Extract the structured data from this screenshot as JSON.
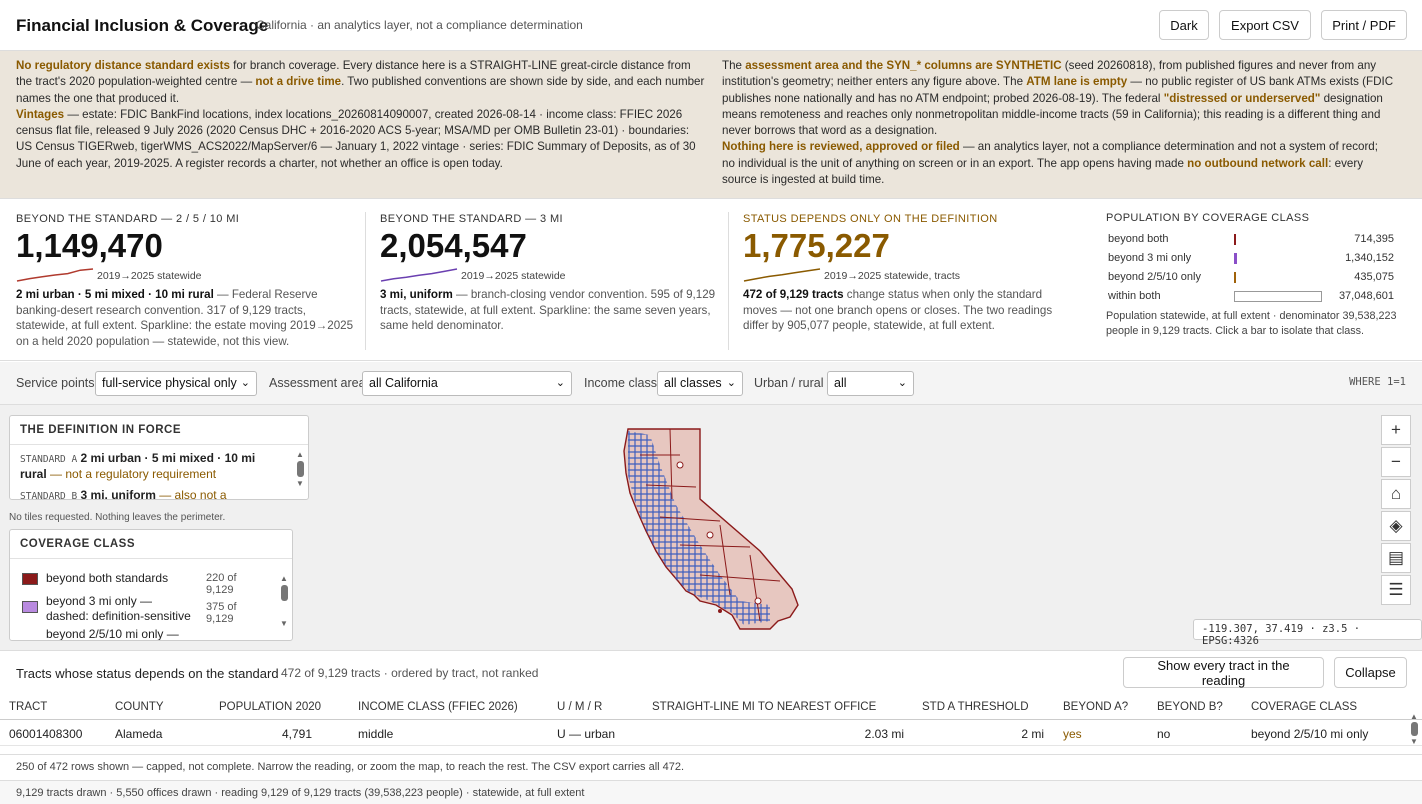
{
  "header": {
    "title": "Financial Inclusion & Coverage",
    "subtitle": "California · an analytics layer, not a compliance determination",
    "buttons": {
      "dark": "Dark",
      "export": "Export CSV",
      "print": "Print / PDF"
    }
  },
  "notice": {
    "left": {
      "p1_hl": "No regulatory distance standard exists",
      "p1_a": " for branch coverage. Every distance here is a STRAIGHT-LINE great-circle distance from the tract's 2020 population-weighted centre — ",
      "p1_hl2": "not a drive time",
      "p1_b": ". Two published conventions are shown side by side, and each number names the one that produced it.",
      "p2_hl": "Vintages",
      "p2_a": " — estate: FDIC BankFind locations, index locations_20260814090007, created 2026-08-14 · income class: FFIEC 2026 census flat file, released 9 July 2026 (2020 Census DHC + 2016-2020 ACS 5-year; MSA/MD per OMB Bulletin 23-01) · boundaries: US Census TIGERweb, tigerWMS_ACS2022/MapServer/6 — January 1, 2022 vintage · series: FDIC Summary of Deposits, as of 30 June of each year, 2019-2025. A register records a charter, not whether an office is open today."
    },
    "right": {
      "p1_a": "The ",
      "p1_hl": "assessment area and the SYN_* columns are SYNTHETIC",
      "p1_b": " (seed 20260818), from published figures and never from any institution's geometry; neither enters any figure above. The ",
      "p1_hl2": "ATM lane is empty",
      "p1_c": " — no public register of US bank ATMs exists (FDIC publishes none nationally and has no ATM endpoint; probed 2026-08-19). The federal ",
      "p1_hl3": "\"distressed or underserved\"",
      "p1_d": " designation means remoteness and reaches only nonmetropolitan middle-income tracts (59 in California); this reading is a different thing and never borrows that word as a designation.",
      "p2_hl": "Nothing here is reviewed, approved or filed",
      "p2_a": " — an analytics layer, not a compliance determination and not a system of record; no individual is the unit of anything on screen or in an export. The app opens having made ",
      "p2_hl2": "no outbound network call",
      "p2_b": ": every source is ingested at build time."
    }
  },
  "kpis": [
    {
      "label": "BEYOND THE STANDARD — 2 / 5 / 10 MI",
      "value": "1,149,470",
      "spark_label": "2019→2025 statewide",
      "spark_color": "#b03a2e",
      "desc_b": "2 mi urban · 5 mi mixed · 10 mi rural",
      "desc": " — Federal Reserve banking-desert research convention. 317 of 9,129 tracts, statewide, at full extent. Sparkline: the estate moving 2019→2025 on a held 2020 population — statewide, not this view.",
      "spark": [
        0.0,
        0.2,
        0.35,
        0.5,
        0.62,
        0.9,
        1.0
      ]
    },
    {
      "label": "BEYOND THE STANDARD — 3 MI",
      "value": "2,054,547",
      "spark_label": "2019→2025 statewide",
      "spark_color": "#6a3fb0",
      "desc_b": "3 mi, uniform",
      "desc": " — branch-closing vendor convention. 595 of 9,129 tracts, statewide, at full extent. Sparkline: the same seven years, same held denominator.",
      "spark": [
        0.0,
        0.18,
        0.32,
        0.48,
        0.62,
        0.8,
        1.0
      ]
    },
    {
      "label": "STATUS DEPENDS ONLY ON THE DEFINITION",
      "value": "1,775,227",
      "spark_label": "2019→2025 statewide, tracts",
      "spark_color": "#8a5a00",
      "desc_b": "472 of 9,129 tracts",
      "desc": " change status when only the standard moves — not one branch opens or closes. The two readings differ by 905,077 people, statewide, at full extent.",
      "spark": [
        0.0,
        0.2,
        0.38,
        0.52,
        0.68,
        0.84,
        1.0
      ]
    }
  ],
  "population": {
    "label": "POPULATION BY COVERAGE CLASS",
    "rows": [
      {
        "name": "beyond both",
        "value": "714,395",
        "fraction": 0.018,
        "color": "#8b1a1a"
      },
      {
        "name": "beyond 3 mi only",
        "value": "1,340,152",
        "fraction": 0.034,
        "color": "#8a4fc8"
      },
      {
        "name": "beyond 2/5/10 only",
        "value": "435,075",
        "fraction": 0.011,
        "color": "#a0620a"
      },
      {
        "name": "within both",
        "value": "37,048,601",
        "fraction": 0.94,
        "color": "#ffffff"
      }
    ],
    "note": "Population statewide, at full extent · denominator 39,538,223 people in 9,129 tracts. Click a bar to isolate that class."
  },
  "filters": {
    "service_label": "Service points",
    "service_value": "full-service physical only",
    "area_label": "Assessment area",
    "area_value": "all California",
    "income_label": "Income class",
    "income_value": "all classes",
    "urban_label": "Urban / rural",
    "urban_value": "all",
    "where": "WHERE 1=1"
  },
  "definition_panel": {
    "title": "THE DEFINITION IN FORCE",
    "a_key": "STANDARD A",
    "a_val": "2 mi urban · 5 mi mixed · 10 mi rural",
    "a_note": " — not a regulatory requirement",
    "b_key": "STANDARD B",
    "b_val": "3 mi, uniform",
    "b_note": " — also not a"
  },
  "map": {
    "no_tiles": "No tiles requested. Nothing leaves the perimeter.",
    "coords": "-119.307, 37.419 · z3.5 · EPSG:4326",
    "controls": [
      "+",
      "−",
      "⌂",
      "◈",
      "▤",
      "☰"
    ]
  },
  "coverage_panel": {
    "title": "COVERAGE CLASS",
    "items": [
      {
        "label": "beyond both standards",
        "count": "220 of 9,129",
        "color": "#8b1a1a"
      },
      {
        "label": "beyond 3 mi only — dashed: definition-sensitive",
        "count": "375 of 9,129",
        "color": "#b98ae0"
      },
      {
        "label": "beyond 2/5/10 mi only —",
        "count": "",
        "color": "#a0620a"
      }
    ]
  },
  "table": {
    "title": "Tracts whose status depends on the standard",
    "subtitle": "472 of 9,129 tracts · ordered by tract, not ranked",
    "show_all": "Show every tract in the reading",
    "collapse": "Collapse",
    "columns": [
      "TRACT",
      "COUNTY",
      "POPULATION 2020",
      "INCOME CLASS (FFIEC 2026)",
      "U / M / R",
      "STRAIGHT-LINE MI TO NEAREST OFFICE",
      "STD A THRESHOLD",
      "BEYOND A?",
      "BEYOND B?",
      "COVERAGE CLASS"
    ],
    "row": [
      "06001408300",
      "Alameda",
      "4,791",
      "middle",
      "U — urban",
      "2.03 mi",
      "2 mi",
      "yes",
      "no",
      "beyond 2/5/10 mi only"
    ],
    "note": "250 of 472 rows shown — capped, not complete. Narrow the reading, or zoom the map, to reach the rest. The CSV export carries all 472."
  },
  "footer": "9,129 tracts drawn · 5,550 offices drawn · reading 9,129 of 9,129 tracts (39,538,223 people) · statewide, at full extent"
}
